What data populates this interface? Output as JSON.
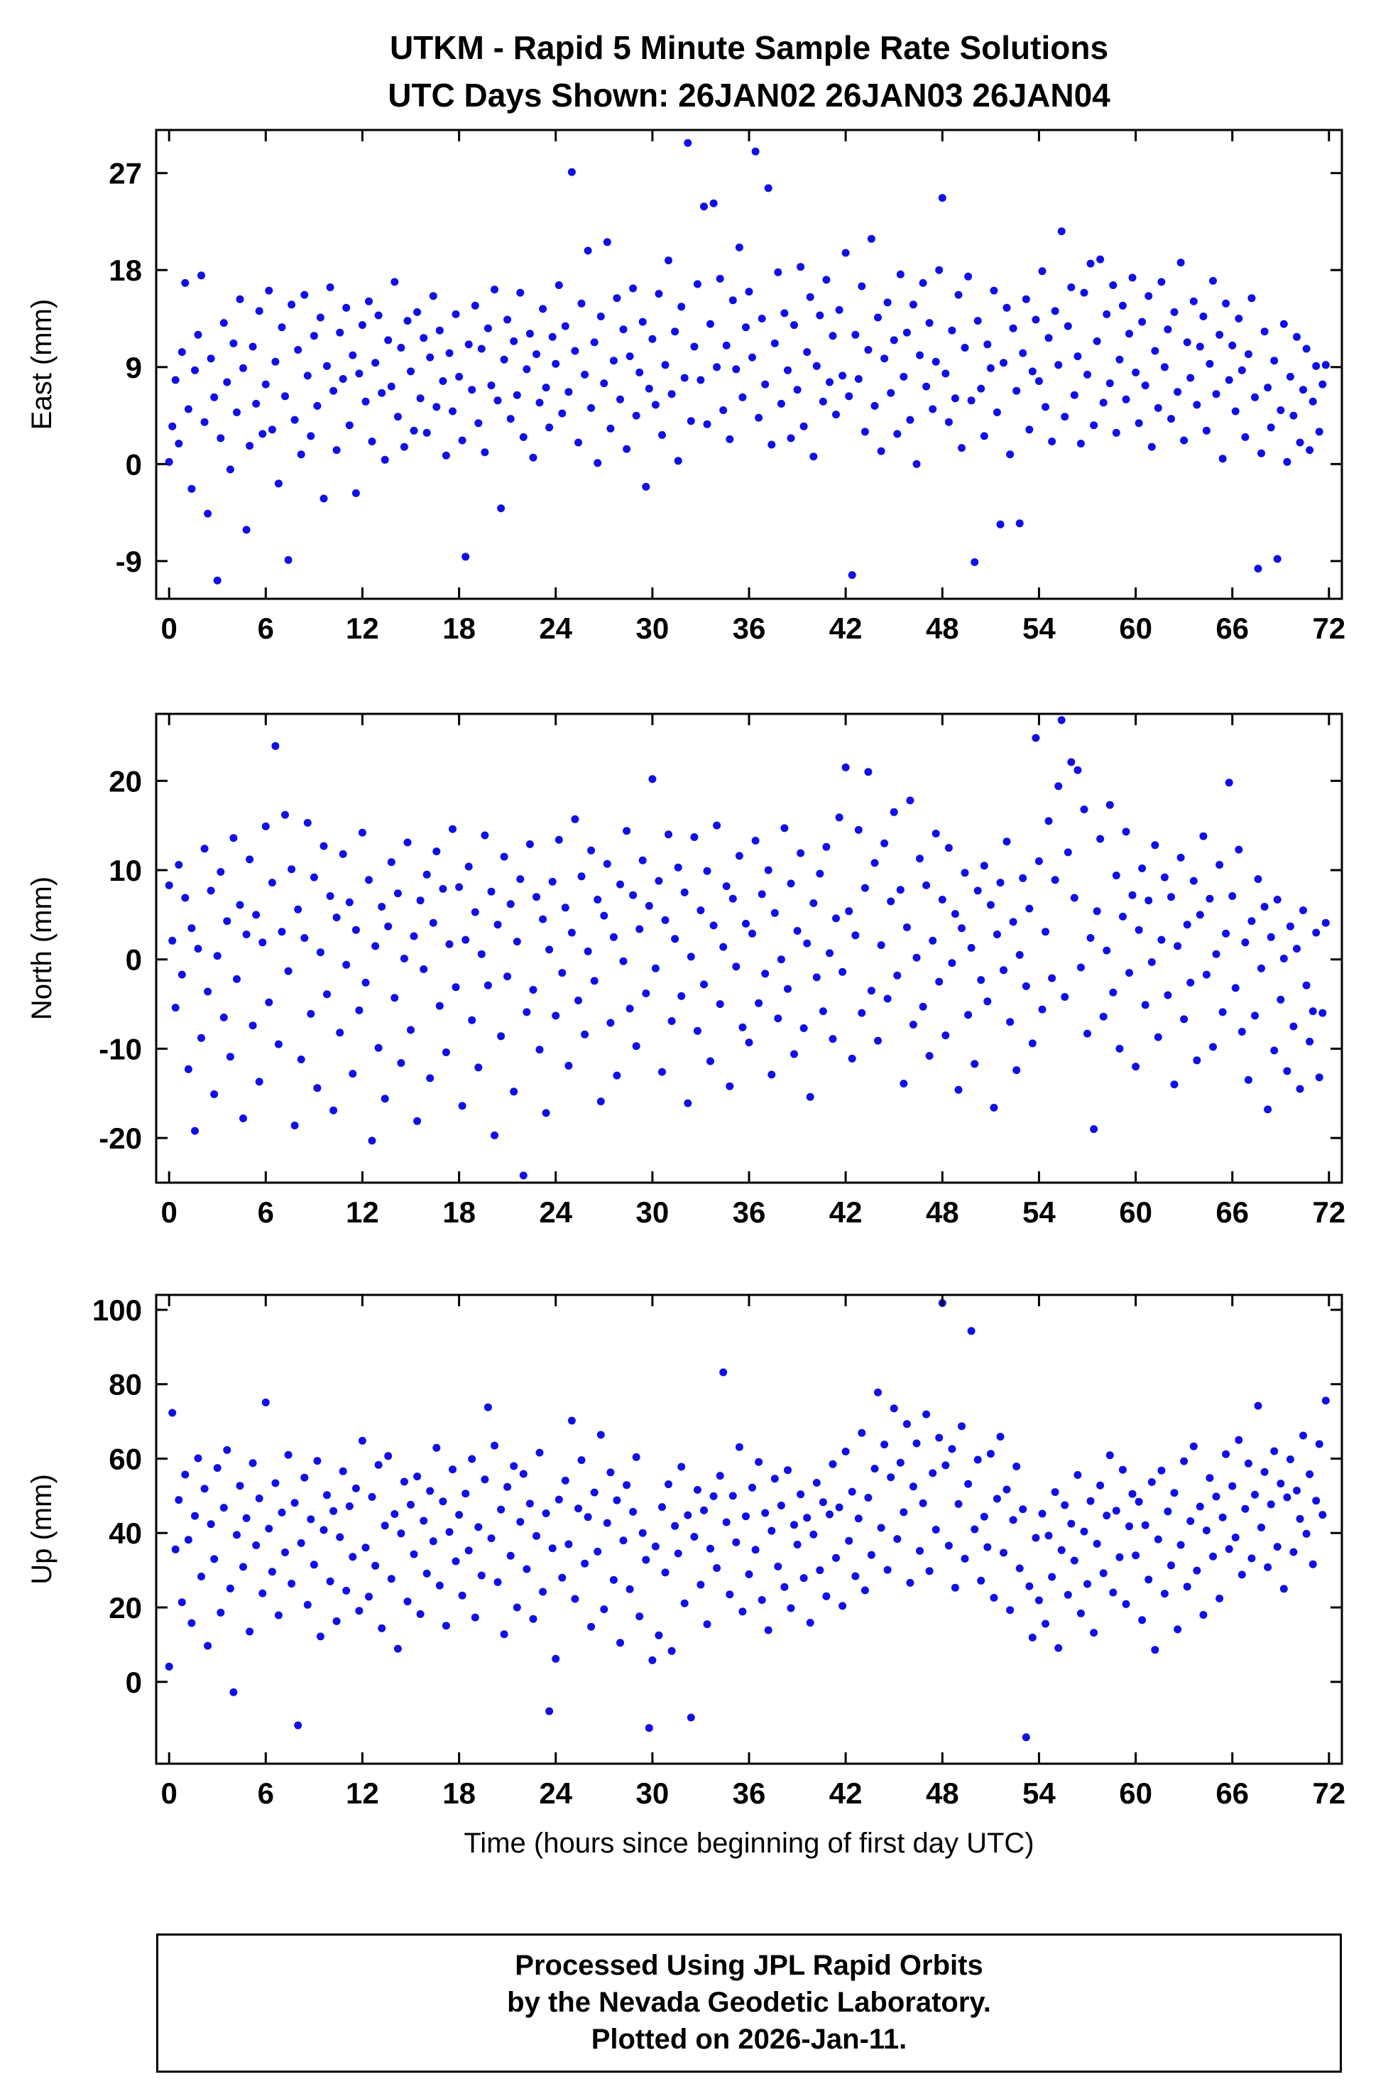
{
  "header": {
    "title_line1": "UTKM - Rapid 5 Minute Sample Rate Solutions",
    "title_line2": "UTC Days Shown:  26JAN02 26JAN03 26JAN04"
  },
  "xlabel": "Time (hours since beginning of first day UTC)",
  "footer": {
    "line1": "Processed Using JPL Rapid Orbits",
    "line2": "by the Nevada Geodetic Laboratory.",
    "line3": "Plotted on 2026-Jan-11."
  },
  "style": {
    "marker_color": "#1010e6",
    "frame_color": "#000000"
  },
  "chart_data": [
    {
      "type": "scatter",
      "name": "east",
      "ylabel": "East (mm)",
      "ylim": [
        -12.5,
        31
      ],
      "yticks": [
        -9,
        0,
        9,
        18,
        27
      ],
      "xlim": [
        -0.8,
        72.8
      ],
      "xticks": [
        0,
        6,
        12,
        18,
        24,
        30,
        36,
        42,
        48,
        54,
        60,
        66,
        72
      ],
      "x_start": 0,
      "x_step": 0.2,
      "y": [
        0.2,
        3.5,
        7.8,
        1.9,
        10.4,
        16.8,
        5.1,
        -2.3,
        8.7,
        12.0,
        17.5,
        3.9,
        -4.6,
        9.8,
        6.2,
        -10.8,
        2.4,
        13.1,
        7.6,
        -0.5,
        11.2,
        4.8,
        15.3,
        8.9,
        -6.1,
        1.7,
        10.9,
        5.6,
        14.2,
        2.8,
        7.4,
        16.1,
        3.2,
        9.5,
        -1.8,
        12.7,
        6.3,
        -8.9,
        14.8,
        4.1,
        10.6,
        0.9,
        15.7,
        8.2,
        2.6,
        11.9,
        5.4,
        13.6,
        -3.2,
        9.1,
        16.4,
        6.8,
        1.3,
        12.2,
        7.9,
        14.5,
        3.6,
        10.1,
        -2.7,
        8.4,
        12.9,
        5.8,
        15.1,
        2.1,
        9.4,
        13.8,
        6.6,
        0.4,
        11.5,
        7.2,
        16.9,
        4.4,
        10.8,
        1.6,
        13.3,
        8.6,
        3.1,
        14.1,
        6.1,
        11.7,
        2.9,
        9.9,
        15.6,
        5.3,
        12.4,
        7.7,
        0.8,
        10.3,
        4.9,
        13.9,
        8.1,
        2.2,
        -8.6,
        11.1,
        6.9,
        14.7,
        3.8,
        10.7,
        1.1,
        12.6,
        7.3,
        16.2,
        5.9,
        -4.1,
        9.7,
        13.4,
        4.2,
        11.4,
        6.4,
        15.9,
        2.5,
        8.8,
        12.1,
        0.6,
        10.2,
        5.7,
        14.4,
        7.1,
        3.4,
        11.8,
        9.3,
        16.6,
        4.7,
        12.8,
        6.7,
        27.1,
        10.5,
        2.0,
        14.9,
        8.3,
        19.8,
        5.2,
        11.3,
        0.1,
        13.7,
        7.5,
        20.6,
        3.3,
        9.6,
        15.4,
        6.0,
        12.5,
        1.4,
        10.0,
        16.3,
        4.5,
        8.5,
        13.2,
        -2.1,
        7.0,
        11.6,
        5.5,
        15.8,
        2.7,
        9.2,
        18.9,
        6.5,
        12.3,
        0.3,
        14.6,
        8.0,
        29.8,
        4.0,
        10.9,
        16.7,
        7.8,
        23.9,
        3.7,
        13.0,
        24.2,
        9.0,
        17.2,
        5.0,
        11.0,
        2.3,
        15.2,
        8.8,
        20.1,
        6.2,
        12.7,
        16.0,
        9.9,
        29.0,
        4.3,
        13.5,
        7.4,
        25.6,
        1.8,
        11.2,
        17.8,
        5.6,
        14.0,
        8.7,
        2.4,
        12.9,
        6.9,
        18.3,
        3.5,
        10.4,
        15.5,
        0.7,
        9.1,
        13.8,
        5.8,
        17.1,
        7.6,
        11.9,
        4.6,
        14.3,
        8.2,
        19.6,
        6.3,
        -10.3,
        12.0,
        7.9,
        16.5,
        3.0,
        10.6,
        20.9,
        5.4,
        13.6,
        1.2,
        9.8,
        15.0,
        6.6,
        11.5,
        2.8,
        17.6,
        8.1,
        12.2,
        4.1,
        14.8,
        0.0,
        10.1,
        16.8,
        7.2,
        13.1,
        5.1,
        9.5,
        18.0,
        24.7,
        8.4,
        3.9,
        12.4,
        6.1,
        15.7,
        1.5,
        10.8,
        17.4,
        5.9,
        -9.1,
        13.3,
        7.0,
        2.6,
        11.1,
        8.9,
        16.1,
        4.8,
        -5.6,
        9.4,
        14.5,
        0.9,
        12.6,
        6.8,
        -5.5,
        10.3,
        15.3,
        3.2,
        8.6,
        13.4,
        7.7,
        17.9,
        5.3,
        11.7,
        2.1,
        14.2,
        9.2,
        21.6,
        4.4,
        12.8,
        16.4,
        6.4,
        10.0,
        1.9,
        15.9,
        8.3,
        18.6,
        3.6,
        11.4,
        19.0,
        5.7,
        13.9,
        7.5,
        16.6,
        2.9,
        9.7,
        14.7,
        6.0,
        12.1,
        17.3,
        8.5,
        3.8,
        13.2,
        7.3,
        15.6,
        1.6,
        10.5,
        5.2,
        16.9,
        9.0,
        12.5,
        4.2,
        14.1,
        6.7,
        18.7,
        2.2,
        11.3,
        8.0,
        15.1,
        5.5,
        10.9,
        13.7,
        3.1,
        9.3,
        17.0,
        6.5,
        12.0,
        0.5,
        14.9,
        7.8,
        11.0,
        4.9,
        13.5,
        8.7,
        2.5,
        10.2,
        15.4,
        6.2,
        -9.7,
        1.0,
        12.3,
        7.1,
        3.4,
        9.6,
        -8.8,
        5.0,
        13.0,
        0.2,
        8.1,
        4.5,
        11.8,
        2.0,
        6.9,
        10.7,
        1.3,
        5.8,
        9.1,
        3.0,
        7.4,
        9.2
      ]
    },
    {
      "type": "scatter",
      "name": "north",
      "ylabel": "North (mm)",
      "ylim": [
        -25,
        27.5
      ],
      "yticks": [
        -20,
        -10,
        0,
        10,
        20
      ],
      "xlim": [
        -0.8,
        72.8
      ],
      "xticks": [
        0,
        6,
        12,
        18,
        24,
        30,
        36,
        42,
        48,
        54,
        60,
        66,
        72
      ],
      "x_start": 0,
      "x_step": 0.2,
      "y": [
        8.3,
        2.1,
        -5.4,
        10.6,
        -1.7,
        6.9,
        -12.3,
        3.5,
        -19.2,
        1.2,
        -8.8,
        12.4,
        -3.6,
        7.7,
        -15.1,
        0.4,
        9.8,
        -6.5,
        4.3,
        -10.9,
        13.6,
        -2.2,
        6.1,
        -17.8,
        2.8,
        11.2,
        -7.4,
        5.0,
        -13.7,
        1.9,
        14.9,
        -4.8,
        8.6,
        23.9,
        -9.5,
        3.1,
        16.2,
        -1.3,
        10.1,
        -18.6,
        5.6,
        -11.2,
        2.4,
        15.3,
        -6.1,
        9.2,
        -14.4,
        0.8,
        12.7,
        -3.9,
        7.1,
        -16.9,
        4.7,
        -8.2,
        11.8,
        -0.6,
        6.4,
        -12.8,
        3.3,
        -5.7,
        14.2,
        -2.6,
        8.9,
        -20.3,
        1.5,
        -9.9,
        5.9,
        -15.6,
        3.7,
        10.9,
        -4.3,
        7.4,
        -11.6,
        0.1,
        13.1,
        -7.9,
        2.6,
        -18.1,
        6.6,
        -1.1,
        9.5,
        -13.3,
        4.1,
        12.1,
        -5.2,
        7.9,
        -10.4,
        1.7,
        14.6,
        -3.1,
        8.1,
        -16.4,
        2.2,
        10.4,
        -6.8,
        5.3,
        -12.1,
        0.6,
        13.9,
        -2.9,
        7.6,
        -19.7,
        3.9,
        -8.6,
        11.5,
        -1.9,
        6.2,
        -14.8,
        2.0,
        9.0,
        -24.2,
        -5.9,
        12.9,
        -3.4,
        7.0,
        -10.1,
        4.5,
        -17.2,
        1.1,
        8.7,
        -6.3,
        13.4,
        -1.5,
        5.8,
        -11.9,
        3.0,
        15.7,
        -4.6,
        9.3,
        -8.4,
        0.9,
        12.2,
        -2.4,
        6.7,
        -15.9,
        4.9,
        10.7,
        -7.1,
        2.5,
        -13.0,
        8.4,
        -0.2,
        14.4,
        -5.5,
        7.2,
        -9.7,
        3.4,
        11.1,
        -3.8,
        6.0,
        20.2,
        -1.0,
        8.8,
        -12.6,
        4.4,
        14.0,
        -6.9,
        2.3,
        10.3,
        -4.1,
        7.5,
        -16.1,
        0.3,
        13.7,
        -8.0,
        5.5,
        -2.8,
        9.9,
        -11.4,
        3.8,
        15.0,
        -5.0,
        1.4,
        8.2,
        -14.2,
        6.8,
        -0.8,
        11.6,
        -7.6,
        4.0,
        -9.3,
        2.9,
        13.3,
        -4.9,
        7.3,
        -1.6,
        10.0,
        -12.9,
        5.2,
        -6.6,
        0.0,
        14.7,
        -3.3,
        8.5,
        -10.6,
        3.2,
        11.9,
        -7.7,
        1.8,
        -15.4,
        6.3,
        -2.0,
        9.6,
        -5.8,
        12.6,
        0.7,
        -8.9,
        4.6,
        15.9,
        -1.4,
        21.5,
        5.4,
        -11.1,
        2.7,
        14.5,
        -6.0,
        8.0,
        21.0,
        -3.5,
        10.8,
        -9.1,
        1.6,
        13.0,
        -4.4,
        6.5,
        16.5,
        -1.8,
        7.8,
        -13.9,
        3.6,
        17.8,
        -7.3,
        0.2,
        11.3,
        -5.3,
        8.3,
        -10.8,
        2.1,
        14.1,
        -2.5,
        6.7,
        -8.5,
        12.5,
        -0.4,
        5.1,
        -14.6,
        3.5,
        9.7,
        -6.2,
        1.3,
        -11.7,
        7.7,
        -2.3,
        10.5,
        -4.7,
        6.1,
        -16.6,
        2.8,
        8.6,
        -1.2,
        13.2,
        -7.0,
        4.2,
        -12.4,
        0.5,
        9.1,
        -3.0,
        5.7,
        -9.4,
        24.8,
        11.0,
        -5.6,
        3.1,
        15.5,
        -2.1,
        8.9,
        19.4,
        26.8,
        -4.2,
        12.0,
        22.1,
        6.9,
        21.2,
        -0.9,
        16.8,
        -8.3,
        2.4,
        -19.0,
        5.4,
        13.5,
        -6.4,
        1.0,
        17.3,
        -3.7,
        9.4,
        -10.0,
        4.8,
        14.3,
        -1.5,
        7.2,
        -12.0,
        3.3,
        10.2,
        -5.1,
        6.6,
        -0.3,
        12.8,
        -8.7,
        2.2,
        9.2,
        -4.0,
        7.0,
        -14.0,
        1.5,
        11.4,
        -6.7,
        3.9,
        -2.6,
        8.8,
        -11.3,
        5.0,
        13.8,
        -1.7,
        6.8,
        -9.8,
        0.6,
        10.6,
        -5.9,
        2.9,
        19.8,
        7.1,
        -3.2,
        12.3,
        -8.1,
        1.9,
        -13.5,
        4.3,
        -6.3,
        9.0,
        -1.0,
        5.9,
        -16.8,
        2.5,
        -10.2,
        6.7,
        -4.5,
        0.1,
        -12.5,
        3.7,
        -7.5,
        1.2,
        -14.5,
        5.5,
        -2.9,
        -9.2,
        -5.8,
        3.0,
        -13.2,
        -6.0,
        4.1
      ]
    },
    {
      "type": "scatter",
      "name": "up",
      "ylabel": "Up (mm)",
      "ylim": [
        -22,
        104
      ],
      "yticks": [
        0,
        20,
        40,
        60,
        80,
        100
      ],
      "xlim": [
        -0.8,
        72.8
      ],
      "xticks": [
        0,
        6,
        12,
        18,
        24,
        30,
        36,
        42,
        48,
        54,
        60,
        66,
        72
      ],
      "x_start": 0,
      "x_step": 0.2,
      "y": [
        4.1,
        72.3,
        35.6,
        48.9,
        21.4,
        55.7,
        38.2,
        15.8,
        44.6,
        60.1,
        28.3,
        51.9,
        9.7,
        42.4,
        33.0,
        57.5,
        18.6,
        46.8,
        62.3,
        25.1,
        -2.8,
        39.5,
        52.7,
        30.9,
        44.0,
        13.5,
        58.8,
        36.7,
        49.3,
        23.8,
        75.1,
        41.2,
        29.6,
        53.4,
        17.9,
        45.5,
        34.8,
        61.0,
        26.4,
        48.1,
        -11.7,
        37.3,
        54.9,
        20.7,
        43.7,
        31.5,
        59.4,
        12.2,
        40.8,
        50.2,
        27.0,
        45.9,
        16.3,
        38.9,
        56.6,
        24.5,
        47.2,
        33.6,
        52.0,
        19.1,
        64.8,
        36.1,
        22.9,
        49.7,
        31.2,
        58.3,
        14.4,
        42.0,
        60.7,
        27.7,
        45.1,
        8.9,
        39.9,
        53.8,
        21.6,
        47.6,
        34.3,
        55.2,
        18.2,
        43.3,
        29.1,
        51.3,
        37.8,
        62.9,
        25.9,
        48.5,
        15.1,
        40.3,
        57.1,
        32.4,
        44.9,
        23.2,
        50.6,
        35.3,
        59.9,
        17.3,
        41.6,
        28.6,
        54.4,
        73.8,
        38.6,
        63.5,
        26.8,
        46.3,
        12.8,
        52.4,
        33.9,
        58.0,
        20.0,
        43.0,
        55.9,
        30.3,
        47.9,
        16.9,
        39.2,
        61.6,
        24.2,
        45.3,
        -7.9,
        35.9,
        6.2,
        49.0,
        28.0,
        54.1,
        37.0,
        70.2,
        22.3,
        46.6,
        59.6,
        31.8,
        44.3,
        14.8,
        50.9,
        35.0,
        66.4,
        19.5,
        42.7,
        56.3,
        27.4,
        48.8,
        10.5,
        38.0,
        52.9,
        24.9,
        45.7,
        60.4,
        17.6,
        40.0,
        32.8,
        -12.4,
        5.8,
        36.4,
        12.5,
        47.0,
        29.4,
        53.1,
        8.3,
        41.9,
        34.5,
        57.8,
        21.1,
        44.8,
        -9.6,
        39.0,
        51.6,
        26.1,
        46.1,
        15.5,
        35.8,
        49.9,
        30.6,
        55.4,
        83.2,
        42.9,
        23.5,
        50.0,
        37.5,
        63.1,
        18.9,
        44.5,
        28.9,
        52.2,
        35.5,
        59.1,
        22.0,
        45.4,
        13.9,
        40.6,
        54.6,
        31.0,
        47.4,
        25.5,
        56.9,
        19.8,
        42.2,
        36.9,
        50.4,
        27.9,
        44.1,
        15.9,
        39.6,
        53.5,
        30.0,
        48.3,
        23.0,
        45.0,
        58.5,
        33.3,
        46.9,
        20.4,
        61.9,
        37.9,
        51.1,
        28.4,
        43.9,
        66.9,
        24.6,
        49.5,
        34.1,
        57.3,
        77.8,
        41.4,
        63.8,
        30.1,
        55.0,
        73.5,
        38.4,
        58.9,
        45.6,
        69.3,
        26.6,
        52.5,
        64.1,
        35.2,
        48.0,
        71.9,
        29.8,
        56.1,
        40.9,
        65.6,
        101.8,
        58.2,
        36.6,
        62.6,
        25.3,
        47.8,
        68.7,
        33.1,
        53.2,
        94.3,
        41.0,
        59.7,
        27.2,
        44.4,
        36.2,
        61.3,
        22.6,
        49.2,
        65.9,
        34.7,
        51.7,
        19.3,
        43.5,
        57.9,
        30.5,
        46.4,
        -14.9,
        25.7,
        11.9,
        38.7,
        21.9,
        45.2,
        15.6,
        39.3,
        28.2,
        51.0,
        9.1,
        35.4,
        47.5,
        23.4,
        42.5,
        32.6,
        55.6,
        18.4,
        40.4,
        26.3,
        48.6,
        13.2,
        37.1,
        52.8,
        29.2,
        44.7,
        60.9,
        24.0,
        46.0,
        33.5,
        57.0,
        20.9,
        41.8,
        50.5,
        34.0,
        48.4,
        16.6,
        42.1,
        27.5,
        53.7,
        8.6,
        38.3,
        56.8,
        23.7,
        45.8,
        31.3,
        50.8,
        14.1,
        36.8,
        59.3,
        25.6,
        43.2,
        63.3,
        29.9,
        47.1,
        18.0,
        40.7,
        54.8,
        33.7,
        49.8,
        22.4,
        44.2,
        61.2,
        35.7,
        52.6,
        38.8,
        65.0,
        28.8,
        46.5,
        58.7,
        33.2,
        50.3,
        74.2,
        41.5,
        56.4,
        30.8,
        47.7,
        62.0,
        36.3,
        53.3,
        25.0,
        49.6,
        59.8,
        34.9,
        51.4,
        43.8,
        66.2,
        39.8,
        55.8,
        31.6,
        48.7,
        63.9,
        44.9,
        75.6
      ]
    }
  ]
}
